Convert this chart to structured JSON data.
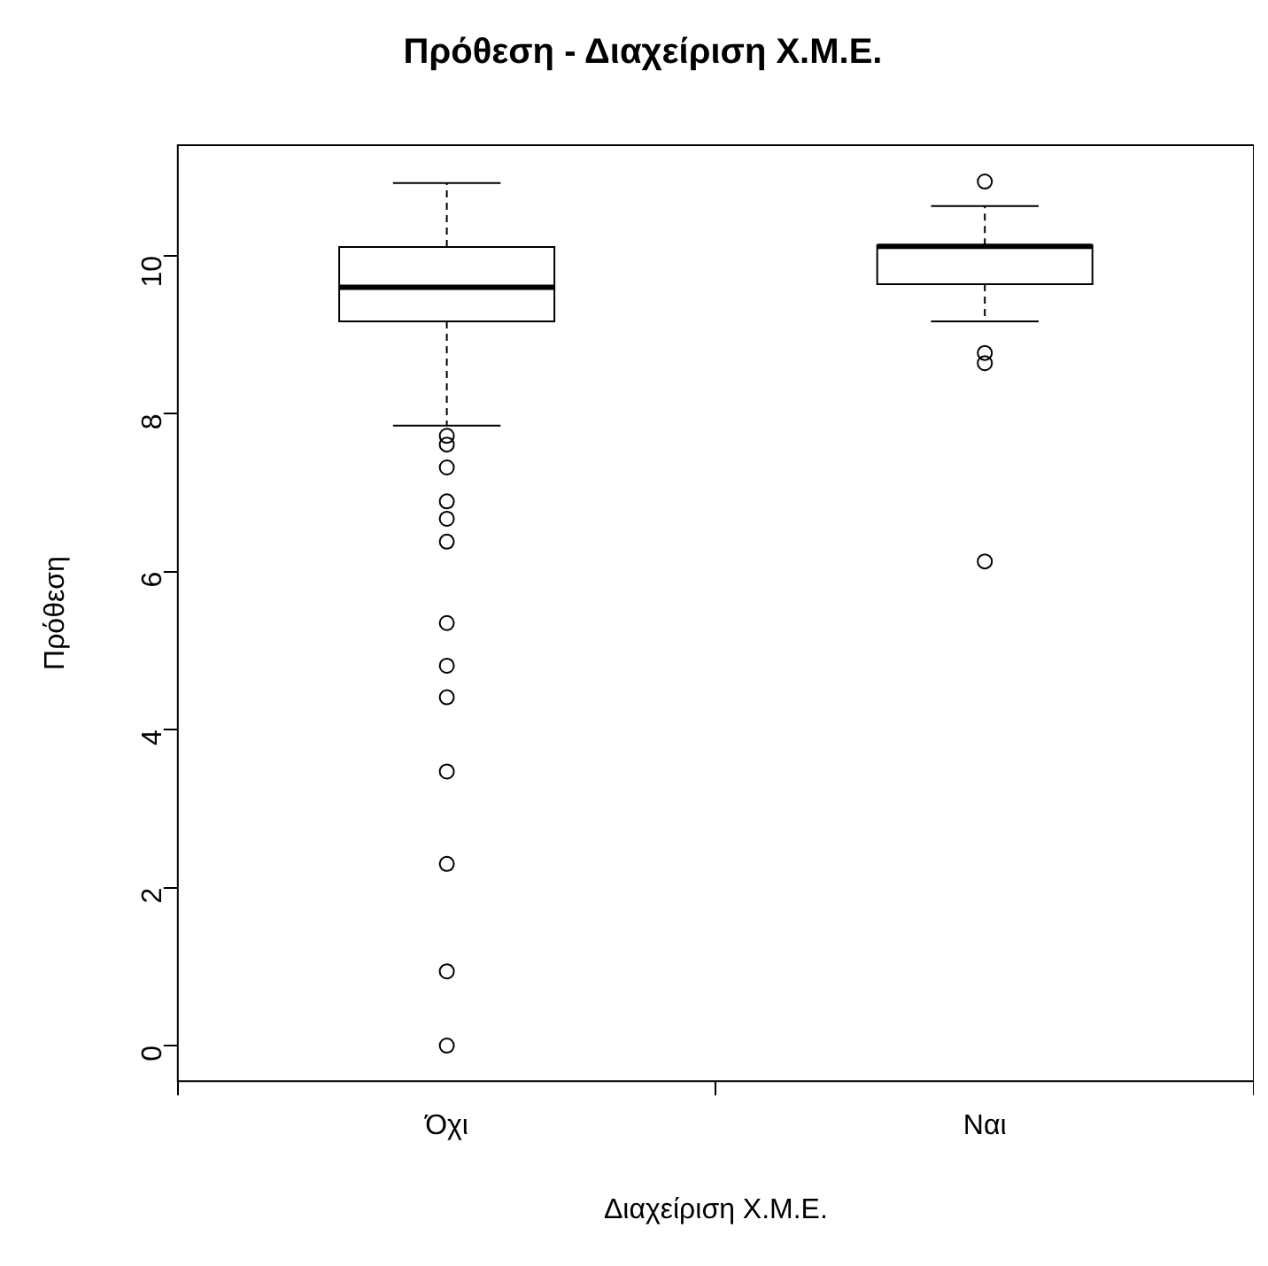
{
  "chart_data": {
    "type": "box",
    "title": "Πρόθεση - Διαχείριση Χ.Μ.Ε.",
    "xlabel": "Διαχείριση Χ.Μ.Ε.",
    "ylabel": "Πρόθεση",
    "categories": [
      "Όχι",
      "Ναι"
    ],
    "boxes": [
      {
        "low": 7.85,
        "q1": 9.17,
        "median": 9.6,
        "q3": 10.11,
        "high": 10.92,
        "outliers": [
          7.72,
          7.61,
          7.32,
          6.89,
          6.67,
          6.38,
          5.35,
          4.81,
          4.41,
          3.47,
          2.3,
          0.94,
          0
        ]
      },
      {
        "low": 9.17,
        "q1": 9.64,
        "median": 10.12,
        "q3": 10.13,
        "high": 10.63,
        "outliers": [
          10.94,
          8.77,
          8.64,
          6.13
        ]
      }
    ],
    "ylim": [
      -0.45,
      11.4
    ],
    "yticks": [
      0,
      2,
      4,
      6,
      8,
      10
    ],
    "grid": false,
    "legend": false
  }
}
